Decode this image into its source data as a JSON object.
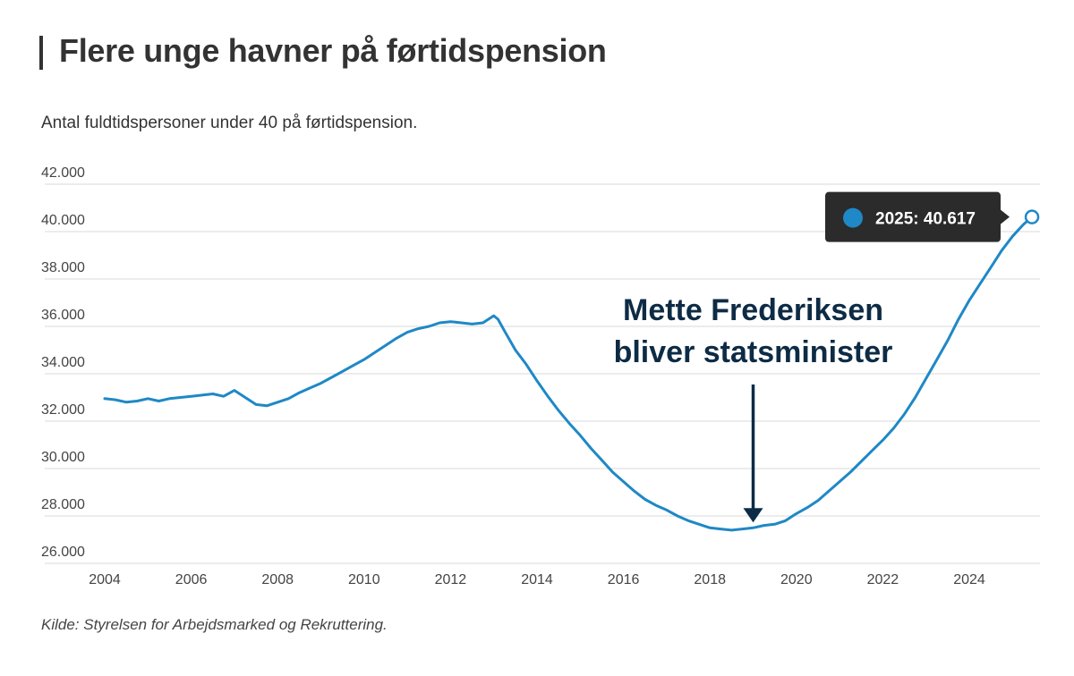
{
  "header": {
    "title": "Flere unge havner på førtidspension",
    "subtitle": "Antal fuldtidspersoner under 40 på førtidspension."
  },
  "footer": {
    "source": "Kilde: Styrelsen for Arbejdsmarked og Rekruttering."
  },
  "colors": {
    "line": "#1f88c6",
    "grid": "#d9d9d9",
    "annotation": "#0d2b45",
    "tooltip_bg": "#2b2b2b",
    "tooltip_dot": "#1f88c6"
  },
  "chart_data": {
    "type": "line",
    "ylim": [
      26000,
      42000
    ],
    "xlim": [
      2004,
      2025.5
    ],
    "y_ticks": [
      26000,
      28000,
      30000,
      32000,
      34000,
      36000,
      38000,
      40000,
      42000
    ],
    "y_tick_labels": [
      "26.000",
      "28.000",
      "30.000",
      "32.000",
      "34.000",
      "36.000",
      "38.000",
      "40.000",
      "42.000"
    ],
    "x_ticks": [
      2004,
      2006,
      2008,
      2010,
      2012,
      2014,
      2016,
      2018,
      2020,
      2022,
      2024
    ],
    "x_tick_labels": [
      "2004",
      "2006",
      "2008",
      "2010",
      "2012",
      "2014",
      "2016",
      "2018",
      "2020",
      "2022",
      "2024"
    ],
    "grid": true,
    "series": [
      {
        "x": [
          2004.0,
          2004.25,
          2004.5,
          2004.75,
          2005.0,
          2005.25,
          2005.5,
          2005.75,
          2006.0,
          2006.25,
          2006.5,
          2006.75,
          2007.0,
          2007.25,
          2007.5,
          2007.75,
          2008.0,
          2008.25,
          2008.5,
          2008.75,
          2009.0,
          2009.25,
          2009.5,
          2009.75,
          2010.0,
          2010.25,
          2010.5,
          2010.75,
          2011.0,
          2011.25,
          2011.5,
          2011.75,
          2012.0,
          2012.25,
          2012.5,
          2012.75,
          2013.0,
          2013.1,
          2013.25,
          2013.5,
          2013.75,
          2014.0,
          2014.25,
          2014.5,
          2014.75,
          2015.0,
          2015.25,
          2015.5,
          2015.75,
          2016.0,
          2016.25,
          2016.5,
          2016.75,
          2017.0,
          2017.25,
          2017.5,
          2017.75,
          2018.0,
          2018.25,
          2018.5,
          2018.75,
          2019.0,
          2019.25,
          2019.5,
          2019.75,
          2020.0,
          2020.25,
          2020.5,
          2020.75,
          2021.0,
          2021.25,
          2021.5,
          2021.75,
          2022.0,
          2022.25,
          2022.5,
          2022.75,
          2023.0,
          2023.25,
          2023.5,
          2023.75,
          2024.0,
          2024.25,
          2024.5,
          2024.75,
          2025.0,
          2025.25,
          2025.45
        ],
        "values": [
          32950,
          32900,
          32800,
          32850,
          32950,
          32850,
          32950,
          33000,
          33050,
          33100,
          33150,
          33050,
          33300,
          33000,
          32700,
          32650,
          32800,
          32950,
          33200,
          33400,
          33600,
          33850,
          34100,
          34350,
          34600,
          34900,
          35200,
          35500,
          35750,
          35900,
          36000,
          36150,
          36200,
          36150,
          36100,
          36150,
          36450,
          36300,
          35800,
          35000,
          34400,
          33700,
          33050,
          32450,
          31900,
          31400,
          30850,
          30350,
          29850,
          29450,
          29050,
          28700,
          28450,
          28250,
          28000,
          27800,
          27650,
          27500,
          27450,
          27400,
          27450,
          27500,
          27600,
          27650,
          27800,
          28100,
          28350,
          28650,
          29050,
          29450,
          29850,
          30300,
          30750,
          31200,
          31700,
          32300,
          33000,
          33800,
          34600,
          35400,
          36300,
          37100,
          37800,
          38500,
          39200,
          39800,
          40300,
          40617
        ]
      }
    ],
    "highlight": {
      "label": "2025: 40.617",
      "x": 2025.45,
      "y": 40617
    },
    "annotation": {
      "lines": [
        "Mette Frederiksen",
        "bliver statsminister"
      ],
      "x": 2019.0,
      "y": 27500
    }
  }
}
